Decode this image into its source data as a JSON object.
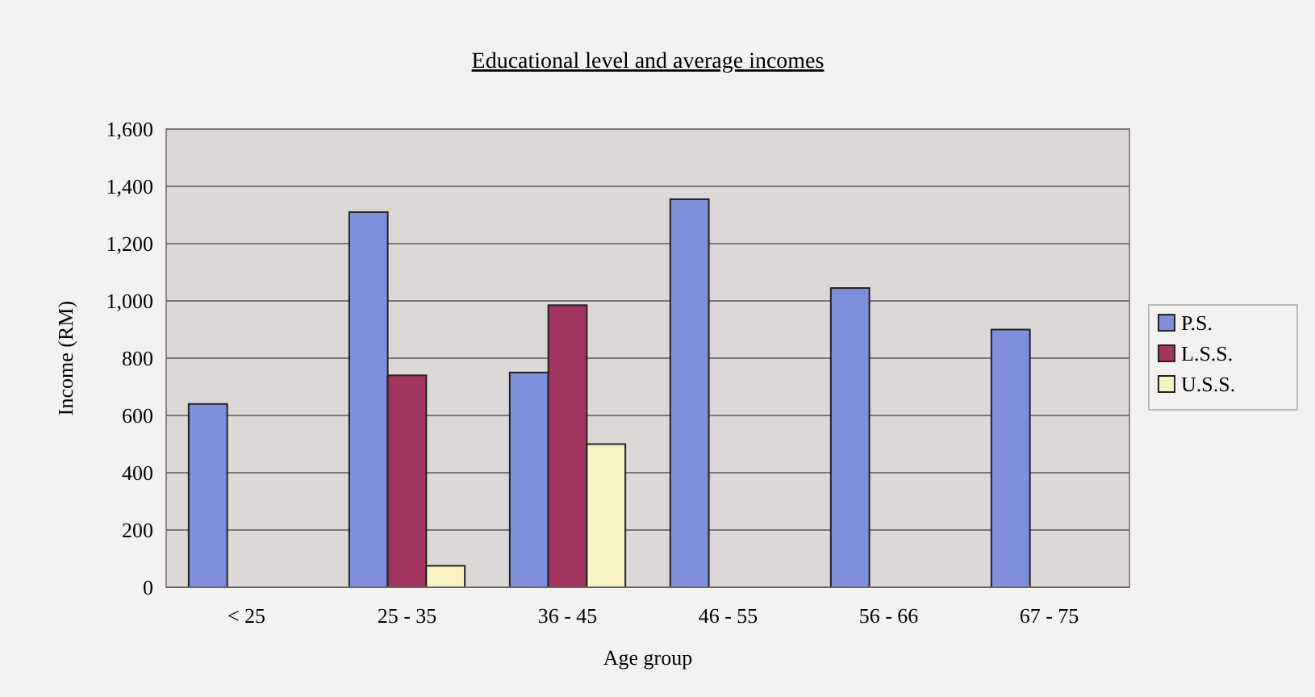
{
  "chart_data": {
    "type": "bar",
    "title": "Educational level and average incomes",
    "xlabel": "Age group",
    "ylabel": "Income (RM)",
    "categories": [
      "< 25",
      "25 - 35",
      "36 - 45",
      "46 - 55",
      "56 - 66",
      "67 - 75"
    ],
    "series": [
      {
        "name": "P.S.",
        "color": "#7f8fdc",
        "values": [
          640,
          1310,
          750,
          1355,
          1045,
          900
        ]
      },
      {
        "name": "L.S.S.",
        "color": "#a33660",
        "values": [
          null,
          740,
          985,
          null,
          null,
          null
        ]
      },
      {
        "name": "U.S.S.",
        "color": "#f7f3c2",
        "values": [
          null,
          75,
          500,
          null,
          null,
          null
        ]
      }
    ],
    "ylim": [
      0,
      1600
    ],
    "yticks": [
      {
        "value": 0,
        "label": "0"
      },
      {
        "value": 200,
        "label": "200"
      },
      {
        "value": 400,
        "label": "400"
      },
      {
        "value": 600,
        "label": "600"
      },
      {
        "value": 800,
        "label": "800"
      },
      {
        "value": 1000,
        "label": "1,000"
      },
      {
        "value": 1200,
        "label": "1,200"
      },
      {
        "value": 1400,
        "label": "1,400"
      },
      {
        "value": 1600,
        "label": "1,600"
      }
    ],
    "grid": "y",
    "legend": "right"
  }
}
